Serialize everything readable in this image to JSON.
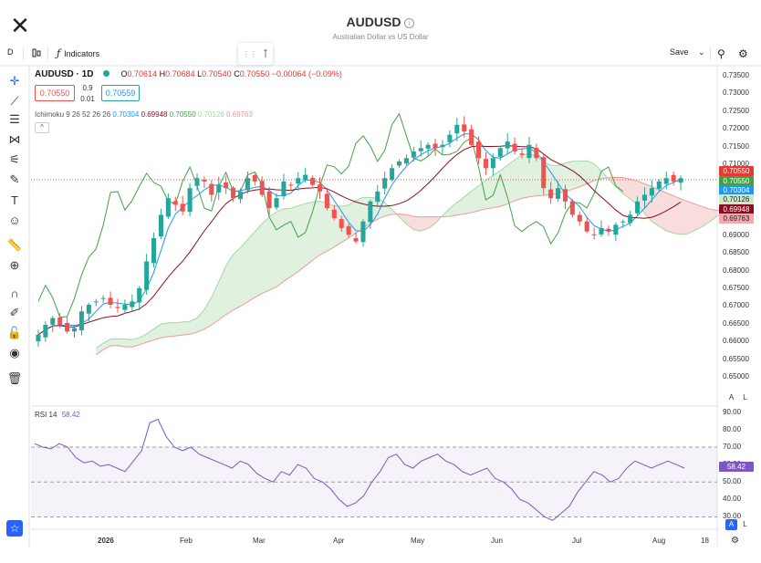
{
  "header": {
    "symbol": "AUDUSD",
    "subtitle": "Australian Dollar vs US Dollar",
    "info_icon": "info-icon",
    "close_icon": "close-icon"
  },
  "toolbar": {
    "interval": "D",
    "chart_type_icon": "candles-icon",
    "indicators_label": "Indicators",
    "save_label": "Save",
    "drag_icon": "drag-handle-icon"
  },
  "legend": {
    "symbol": "AUDUSD · 1D",
    "o_label": "O",
    "o_value": "0.70614",
    "h_label": "H",
    "h_value": "0.70684",
    "l_label": "L",
    "l_value": "0.70540",
    "c_label": "C",
    "c_value": "0.70550",
    "change": "−0.00064 (−0.09%)",
    "sell_price": "0.70550",
    "spread_top": "0.9",
    "spread_bottom": "0.01",
    "buy_price": "0.70559"
  },
  "ichimoku": {
    "label": "Ichimoku 9 26 52 26 26",
    "v1": "0.70304",
    "v2": "0.69948",
    "v3": "0.70550",
    "v4": "0.70126",
    "v5": "0.69763"
  },
  "rsi": {
    "label": "RSI 14",
    "value": "58.42"
  },
  "price_axis": [
    "0.73500",
    "0.73000",
    "0.72500",
    "0.72000",
    "0.71500",
    "0.71000",
    "0.70500",
    "0.70000",
    "0.69500",
    "0.69000",
    "0.68500",
    "0.68000",
    "0.67500",
    "0.67000",
    "0.66500",
    "0.66000",
    "0.65500",
    "0.65000"
  ],
  "price_tags": [
    {
      "value": "0.70550",
      "color": "#e53935"
    },
    {
      "value": "0.70550",
      "color": "#43a047"
    },
    {
      "value": "0.70304",
      "color": "#2196f3"
    },
    {
      "value": "0.70126",
      "color": "#cfe8c8"
    },
    {
      "value": "0.69948",
      "color": "#880e1f"
    },
    {
      "value": "0.69763",
      "color": "#f4a8ad"
    }
  ],
  "rsi_axis": [
    "90.00",
    "80.00",
    "70.00",
    "60.00",
    "50.00",
    "40.00",
    "30.00"
  ],
  "rsi_tag": "58.42",
  "time_axis": [
    "2026",
    "Feb",
    "Mar",
    "Apr",
    "May",
    "Jun",
    "Jul",
    "Aug",
    "18"
  ],
  "auto_label": "A",
  "log_label": "L",
  "colors": {
    "up": "#26a69a",
    "down": "#ef5350",
    "rsi": "#7e57c2",
    "tenkan": "#2196f3",
    "kijun": "#880e1f",
    "lagging": "#43a047"
  },
  "chart_data": [
    {
      "type": "candlestick",
      "title": "AUDUSD",
      "ylim": [
        0.645,
        0.737
      ],
      "x_ticks": [
        "2026",
        "Feb",
        "Mar",
        "Apr",
        "May",
        "Jun",
        "Jul",
        "Aug",
        "18"
      ],
      "close_series": [
        0.659,
        0.662,
        0.664,
        0.662,
        0.66,
        0.661,
        0.666,
        0.668,
        0.669,
        0.67,
        0.668,
        0.667,
        0.668,
        0.669,
        0.673,
        0.681,
        0.688,
        0.695,
        0.7,
        0.698,
        0.696,
        0.703,
        0.706,
        0.705,
        0.701,
        0.704,
        0.703,
        0.7,
        0.702,
        0.706,
        0.705,
        0.701,
        0.697,
        0.7,
        0.705,
        0.704,
        0.706,
        0.707,
        0.704,
        0.702,
        0.697,
        0.694,
        0.691,
        0.689,
        0.687,
        0.693,
        0.699,
        0.702,
        0.706,
        0.709,
        0.711,
        0.712,
        0.714,
        0.715,
        0.716,
        0.715,
        0.716,
        0.719,
        0.722,
        0.72,
        0.716,
        0.712,
        0.709,
        0.712,
        0.715,
        0.717,
        0.714,
        0.713,
        0.716,
        0.712,
        0.703,
        0.7,
        0.703,
        0.699,
        0.695,
        0.693,
        0.69,
        0.689,
        0.691,
        0.69,
        0.692,
        0.693,
        0.695,
        0.699,
        0.701,
        0.703,
        0.705,
        0.706,
        0.705,
        0.706
      ],
      "ichimoku_values": {
        "tenkan": 0.70304,
        "kijun": 0.69948,
        "lagging": 0.7055,
        "span_a": 0.70126,
        "span_b": 0.69763
      }
    },
    {
      "type": "line",
      "title": "RSI 14",
      "ylim": [
        25,
        92
      ],
      "levels": [
        70,
        50,
        30
      ],
      "values": [
        72,
        70,
        69,
        72,
        70,
        64,
        61,
        62,
        59,
        60,
        58,
        56,
        62,
        68,
        84,
        86,
        76,
        70,
        68,
        70,
        66,
        64,
        62,
        60,
        58,
        62,
        60,
        55,
        52,
        50,
        56,
        54,
        60,
        58,
        52,
        50,
        46,
        40,
        36,
        38,
        42,
        50,
        56,
        64,
        66,
        60,
        58,
        62,
        64,
        66,
        62,
        60,
        56,
        54,
        56,
        58,
        52,
        50,
        46,
        40,
        38,
        34,
        30,
        28,
        32,
        36,
        44,
        50,
        56,
        54,
        50,
        52,
        58,
        62,
        60,
        58,
        60,
        62,
        60,
        58
      ]
    }
  ]
}
